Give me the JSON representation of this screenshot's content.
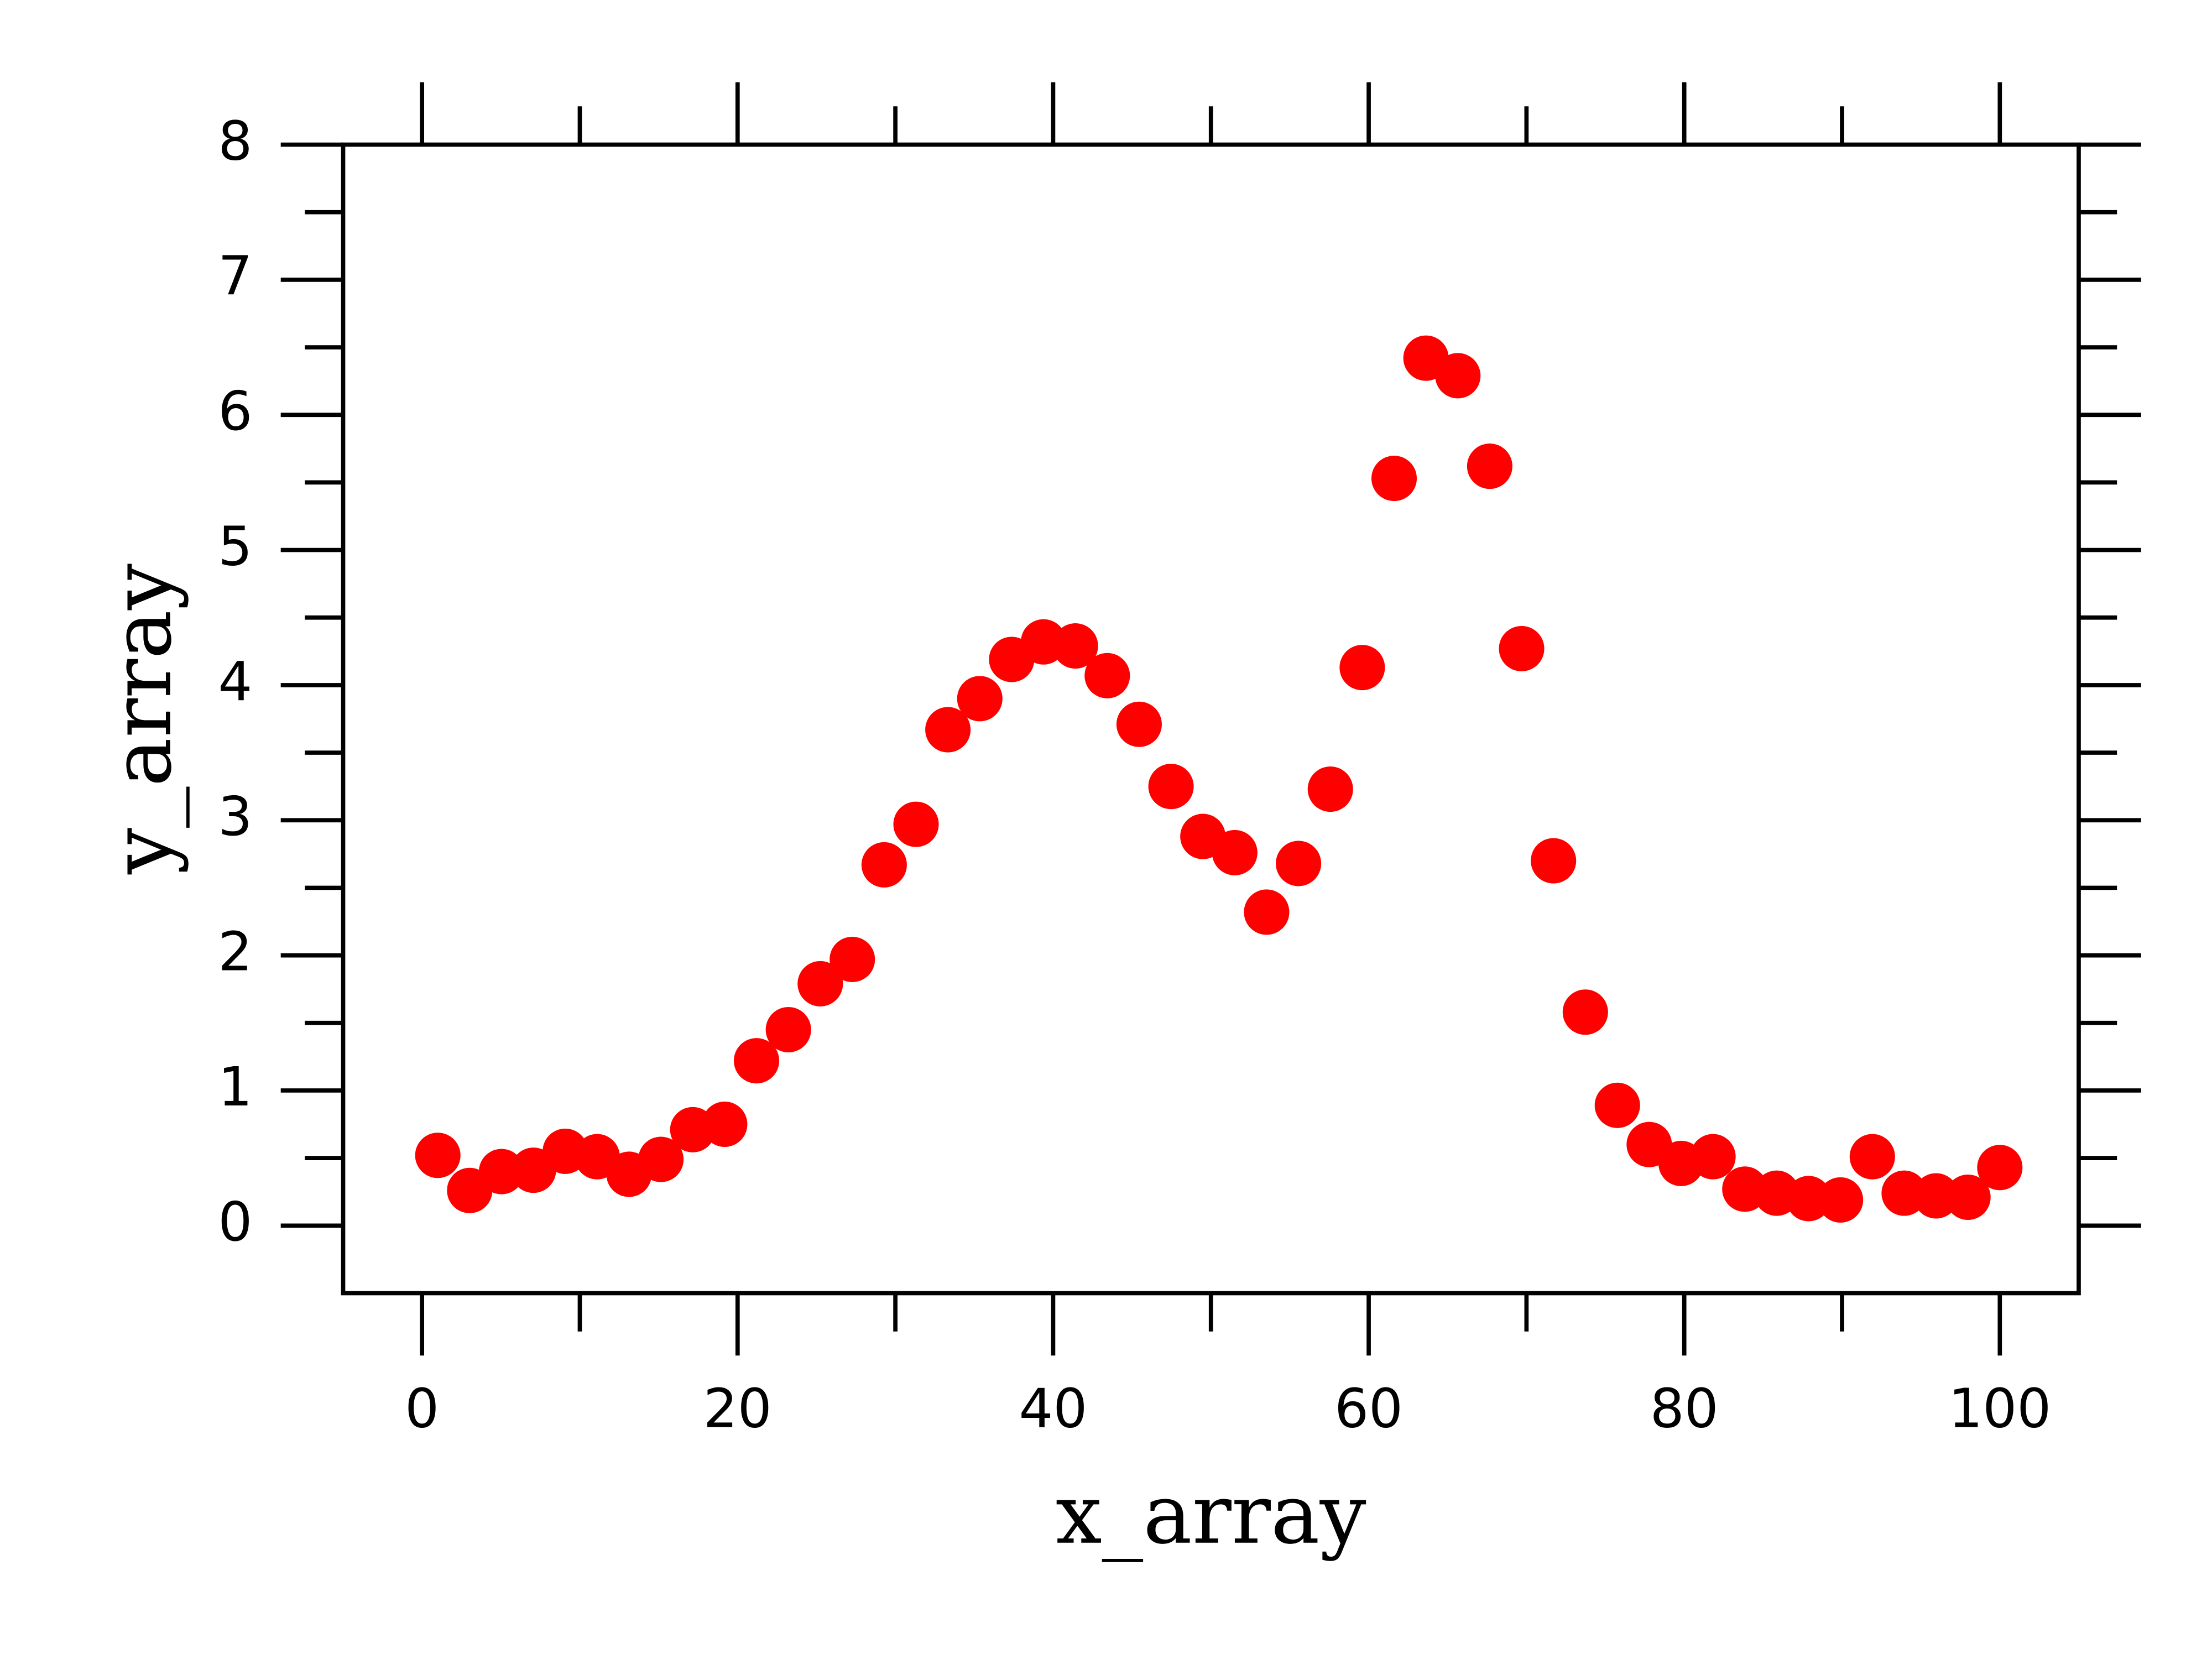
{
  "chart_data": {
    "type": "scatter",
    "xlabel": "x_array",
    "ylabel": "y_array",
    "color": "#ff0000",
    "x": [
      1,
      3.02,
      5.04,
      7.06,
      9.08,
      11.1,
      13.12,
      15.14,
      17.16,
      19.18,
      21.2,
      23.22,
      25.24,
      27.27,
      29.29,
      31.31,
      33.33,
      35.35,
      37.37,
      39.39,
      41.41,
      43.43,
      45.45,
      47.47,
      49.49,
      51.51,
      53.53,
      55.55,
      57.57,
      59.59,
      61.61,
      63.63,
      65.65,
      67.67,
      69.69,
      71.71,
      73.73,
      75.76,
      77.78,
      79.8,
      81.82,
      83.84,
      85.86,
      87.88,
      89.9,
      91.92,
      93.94,
      95.96,
      97.98,
      100
    ],
    "values": [
      0.52,
      0.26,
      0.4,
      0.41,
      0.55,
      0.51,
      0.38,
      0.49,
      0.71,
      0.75,
      1.22,
      1.45,
      1.79,
      1.97,
      2.67,
      2.97,
      3.67,
      3.9,
      4.19,
      4.32,
      4.29,
      4.07,
      3.71,
      3.25,
      2.88,
      2.76,
      2.32,
      2.68,
      3.23,
      4.13,
      5.53,
      6.42,
      6.29,
      5.62,
      4.27,
      2.7,
      1.58,
      0.89,
      0.6,
      0.46,
      0.51,
      0.27,
      0.24,
      0.2,
      0.19,
      0.51,
      0.24,
      0.22,
      0.21,
      0.43
    ],
    "xlim": [
      -5,
      105
    ],
    "ylim": [
      -0.5,
      8
    ],
    "xticks": [
      0,
      20,
      40,
      60,
      80,
      100
    ],
    "yticks": [
      0,
      1,
      2,
      3,
      4,
      5,
      6,
      7,
      8
    ],
    "xminorticks": [
      10,
      30,
      50,
      70,
      90
    ],
    "yminorticks": [
      0.5,
      1.5,
      2.5,
      3.5,
      4.5,
      5.5,
      6.5,
      7.5
    ]
  }
}
